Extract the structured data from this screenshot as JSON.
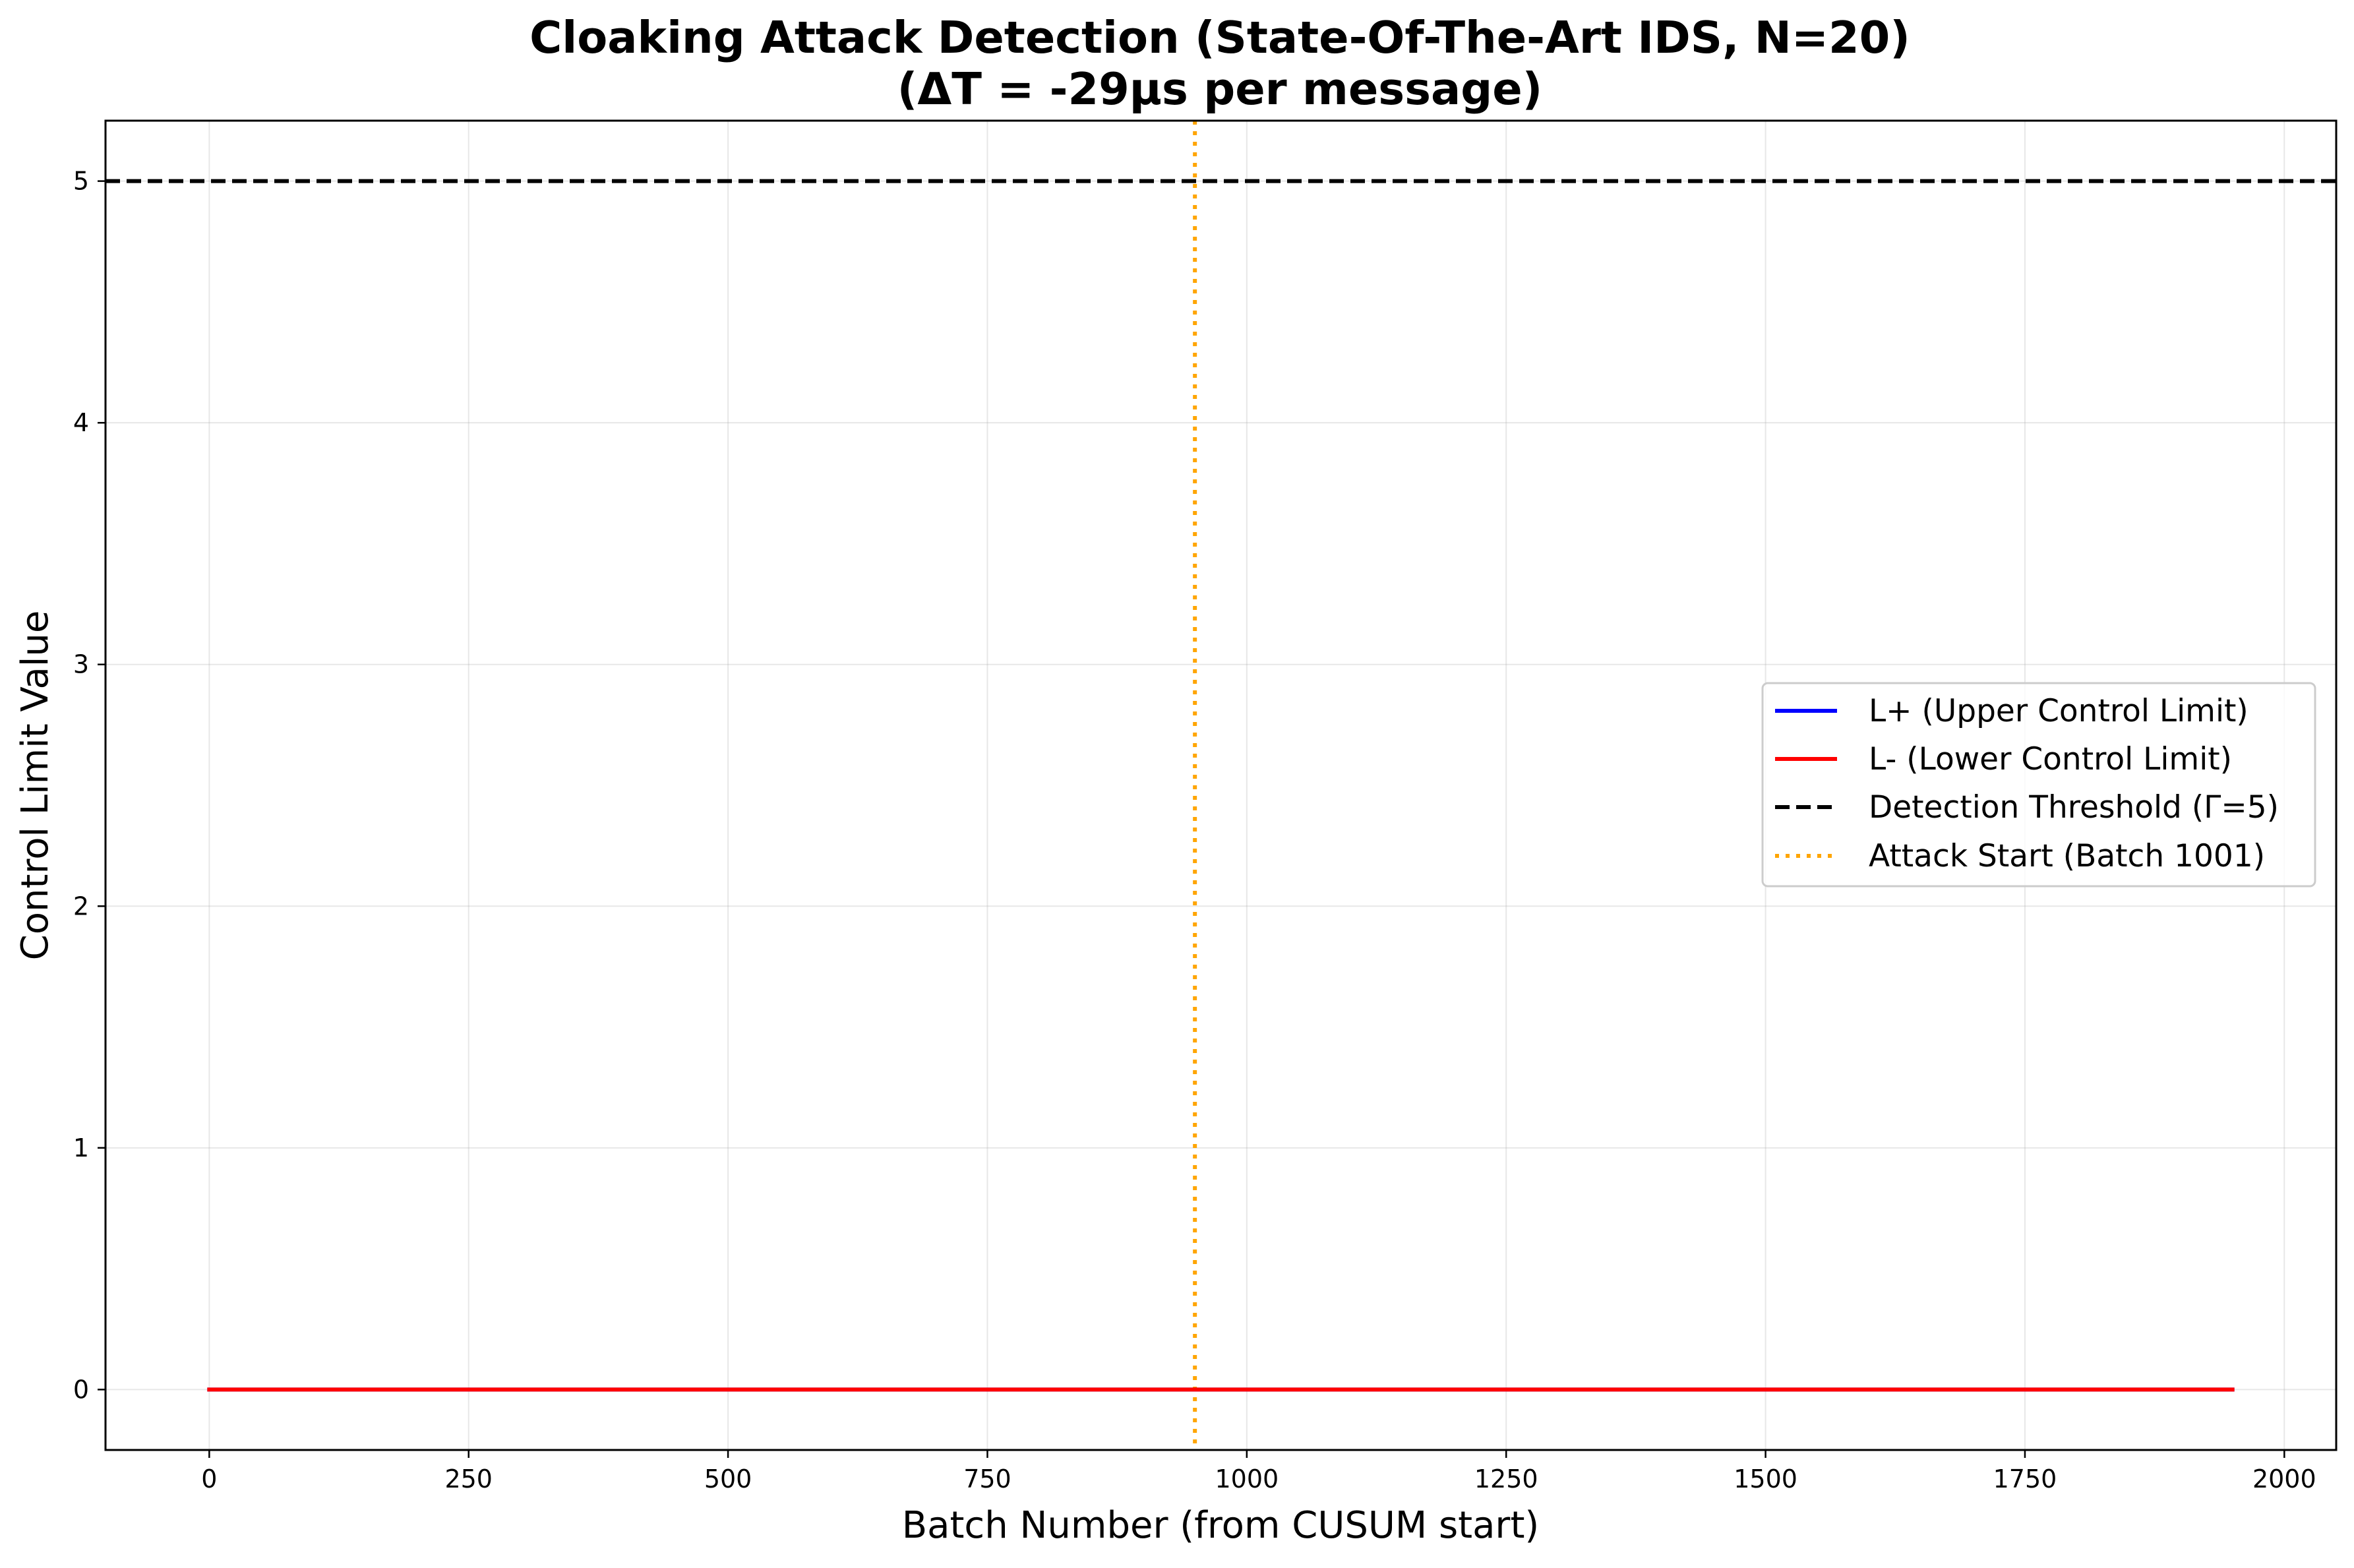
{
  "chart_data": {
    "type": "line",
    "title_line1": "Cloaking Attack Detection (State-Of-The-Art IDS, N=20)",
    "title_line2": "(ΔT = -29μs per message)",
    "xlabel": "Batch Number (from CUSUM start)",
    "ylabel": "Control Limit Value",
    "xlim": [
      -100,
      2050
    ],
    "ylim": [
      -0.25,
      5.25
    ],
    "xticks": [
      0,
      250,
      500,
      750,
      1000,
      1250,
      1500,
      1750,
      2000
    ],
    "yticks": [
      0,
      1,
      2,
      3,
      4,
      5
    ],
    "grid": true,
    "legend_position": "center-right",
    "series": [
      {
        "name": "L+ (Upper Control Limit)",
        "color": "#0000ff",
        "style": "solid",
        "x": [
          0,
          1950
        ],
        "y": [
          0,
          0
        ]
      },
      {
        "name": "L- (Lower Control Limit)",
        "color": "#ff0000",
        "style": "solid",
        "x": [
          0,
          1950
        ],
        "y": [
          0,
          0
        ]
      }
    ],
    "threshold": {
      "name": "Detection Threshold (Γ=5)",
      "y": 5,
      "color": "#000000",
      "style": "dashed"
    },
    "attack_start": {
      "name": "Attack Start (Batch 1001)",
      "x": 950,
      "color": "#ffa500",
      "style": "dotted"
    }
  }
}
